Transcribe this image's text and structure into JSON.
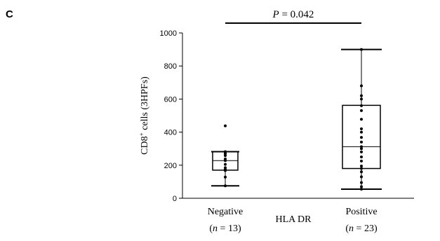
{
  "panel_label": "C",
  "chart_data": {
    "type": "box",
    "ylabel": {
      "prefix": "CD8",
      "superscript": "+",
      "suffix": " cells (3HPFs)"
    },
    "xlabel": "HLA DR",
    "ylim": [
      0,
      1000
    ],
    "yticks": [
      0,
      200,
      400,
      600,
      800,
      1000
    ],
    "annotation": {
      "label": "P",
      "text": " = 0.042"
    },
    "groups": [
      {
        "category": "Negative",
        "n_var": "n",
        "n_text": " = 13",
        "box": {
          "whisker_low": 75,
          "q1": 170,
          "median": 228,
          "q3": 282,
          "whisker_high": 282
        },
        "points": [
          75,
          128,
          168,
          175,
          185,
          205,
          228,
          238,
          258,
          268,
          275,
          282,
          438
        ]
      },
      {
        "category": "Positive",
        "n_var": "n",
        "n_text": " = 23",
        "box": {
          "whisker_low": 55,
          "q1": 180,
          "median": 312,
          "q3": 562,
          "whisker_high": 900
        },
        "points": [
          55,
          70,
          95,
          130,
          160,
          180,
          195,
          225,
          250,
          280,
          300,
          312,
          340,
          368,
          400,
          420,
          478,
          530,
          560,
          600,
          620,
          680,
          900
        ]
      }
    ]
  }
}
